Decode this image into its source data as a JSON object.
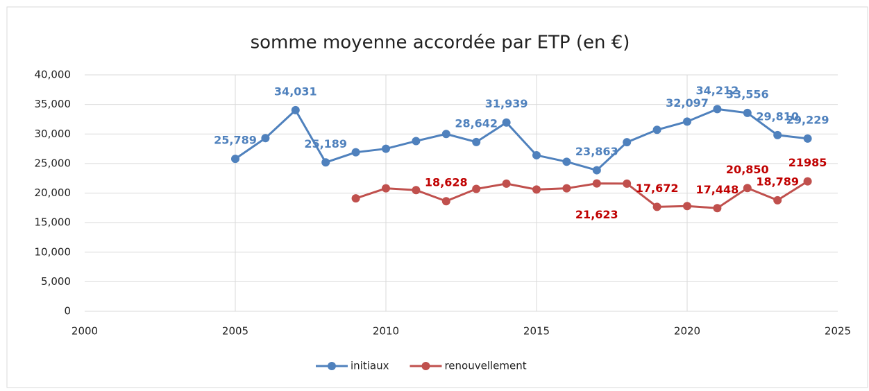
{
  "chart_data": {
    "type": "line",
    "title": "somme moyenne accordée par ETP (en €)",
    "x": [
      2005,
      2006,
      2007,
      2008,
      2009,
      2010,
      2011,
      2012,
      2013,
      2014,
      2015,
      2016,
      2017,
      2018,
      2019,
      2020,
      2021,
      2022,
      2023,
      2024
    ],
    "series": [
      {
        "name": "initiaux",
        "color": "#4f81bd",
        "values": [
          25789,
          29300,
          34031,
          25189,
          26900,
          27500,
          28800,
          30000,
          28642,
          31939,
          26400,
          25300,
          23863,
          28600,
          30700,
          32097,
          34212,
          33556,
          29810,
          29229
        ],
        "value_labels": [
          "25,789",
          null,
          "34,031",
          "25,189",
          null,
          null,
          null,
          null,
          "28,642",
          "31,939",
          null,
          null,
          "23,863",
          null,
          null,
          "32,097",
          "34,212",
          "33,556",
          "29,810",
          "29,229"
        ]
      },
      {
        "name": "renouvellement",
        "color": "#c0504d",
        "values": [
          null,
          null,
          null,
          null,
          19100,
          20800,
          20500,
          18628,
          20700,
          21600,
          20600,
          20800,
          21623,
          21600,
          17672,
          17800,
          17448,
          20850,
          18789,
          21985
        ],
        "value_labels": [
          null,
          null,
          null,
          null,
          null,
          null,
          null,
          "18,628",
          null,
          null,
          null,
          null,
          "21,623",
          null,
          "17,672",
          null,
          "17,448",
          "20,850",
          "18,789",
          "21985"
        ]
      }
    ],
    "xlim": [
      2000,
      2025
    ],
    "xticks": [
      2000,
      2005,
      2010,
      2015,
      2020,
      2025
    ],
    "ylim": [
      0,
      40000
    ],
    "yticks": [
      0,
      {
        "value": 5000,
        "label": "5,000"
      },
      {
        "value": 10000,
        "label": "10,000"
      },
      {
        "value": 15000,
        "label": "15,000"
      },
      {
        "value": 20000,
        "label": "20,000"
      },
      {
        "value": 25000,
        "label": "25,000"
      },
      {
        "value": 30000,
        "label": "30,000"
      },
      {
        "value": 35000,
        "label": "35,000"
      },
      {
        "value": 40000,
        "label": "40,000"
      }
    ],
    "grid": true,
    "legend": "bottom"
  }
}
